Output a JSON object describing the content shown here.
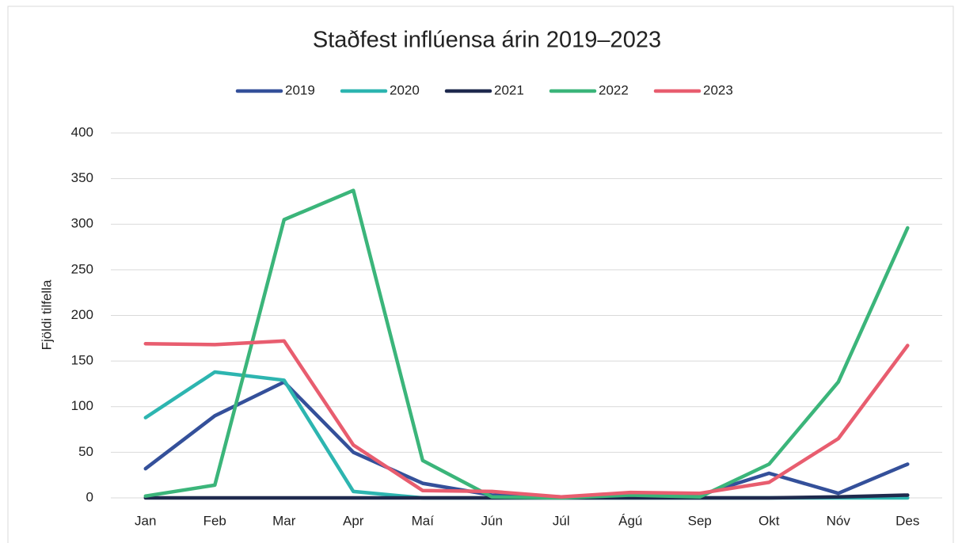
{
  "chart_data": {
    "type": "line",
    "title": "Staðfest inflúensa árin 2019–2023",
    "y_label": "Fjöldi tilfella",
    "categories": [
      "Jan",
      "Feb",
      "Mar",
      "Apr",
      "Maí",
      "Jún",
      "Júl",
      "Ágú",
      "Sep",
      "Okt",
      "Nóv",
      "Des"
    ],
    "series": [
      {
        "name": "2019",
        "color": "#34509a",
        "values": [
          32,
          90,
          127,
          50,
          16,
          3,
          1,
          2,
          3,
          27,
          5,
          37
        ]
      },
      {
        "name": "2020",
        "color": "#2db5b0",
        "values": [
          88,
          138,
          129,
          7,
          0,
          0,
          0,
          0,
          0,
          0,
          0,
          0
        ]
      },
      {
        "name": "2021",
        "color": "#1f2a4e",
        "values": [
          0,
          0,
          0,
          0,
          0,
          0,
          0,
          0,
          0,
          0,
          1,
          3
        ]
      },
      {
        "name": "2022",
        "color": "#3bb57a",
        "values": [
          2,
          14,
          305,
          337,
          41,
          1,
          0,
          3,
          1,
          37,
          127,
          296
        ]
      },
      {
        "name": "2023",
        "color": "#e85d6f",
        "values": [
          169,
          168,
          172,
          58,
          8,
          7,
          1,
          6,
          5,
          17,
          65,
          167
        ]
      }
    ],
    "ylim": [
      0,
      400
    ],
    "yticks": [
      0,
      50,
      100,
      150,
      200,
      250,
      300,
      350,
      400
    ],
    "grid": true,
    "legend": "top"
  }
}
